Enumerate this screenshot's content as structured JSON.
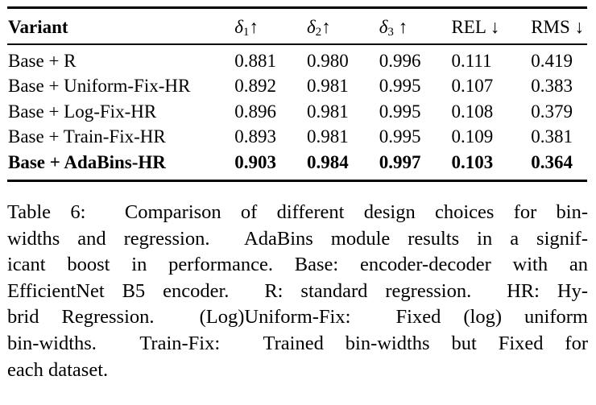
{
  "table": {
    "headers": {
      "variant": "Variant",
      "d1": {
        "sym": "δ",
        "sub": "1",
        "arrow": "↑"
      },
      "d2": {
        "sym": "δ",
        "sub": "2",
        "arrow": "↑"
      },
      "d3": {
        "sym": "δ",
        "sub": "3",
        "arrow": " ↑"
      },
      "rel": "REL ↓",
      "rms": "RMS ↓"
    },
    "rows": [
      {
        "variant": "Base + R",
        "d1": "0.881",
        "d2": "0.980",
        "d3": "0.996",
        "rel": "0.111",
        "rms": "0.419",
        "bold": false
      },
      {
        "variant": "Base + Uniform-Fix-HR",
        "d1": "0.892",
        "d2": "0.981",
        "d3": "0.995",
        "rel": "0.107",
        "rms": "0.383",
        "bold": false
      },
      {
        "variant": "Base + Log-Fix-HR",
        "d1": "0.896",
        "d2": "0.981",
        "d3": "0.995",
        "rel": "0.108",
        "rms": "0.379",
        "bold": false
      },
      {
        "variant": "Base + Train-Fix-HR",
        "d1": "0.893",
        "d2": "0.981",
        "d3": "0.995",
        "rel": "0.109",
        "rms": "0.381",
        "bold": false
      },
      {
        "variant": "Base + AdaBins-HR",
        "d1": "0.903",
        "d2": "0.984",
        "d3": "0.997",
        "rel": "0.103",
        "rms": "0.364",
        "bold": true
      }
    ]
  },
  "caption": "Table 6: Comparison of different design choices for bin-widths and regression. AdaBins module results in a significant boost in performance. Base: encoder-decoder with an EfficientNet B5 encoder. R: standard regression. HR: Hybrid Regression. (Log)Uniform-Fix: Fixed (log) uniform bin-widths. Train-Fix: Trained bin-widths but Fixed for each dataset.",
  "caption_lines": [
    "Table 6:  Comparison of different design choices for bin-",
    "widths and regression.  AdaBins module results in a signif-",
    "icant boost in performance. Base: encoder-decoder with an",
    "EfficientNet B5 encoder.  R: standard regression.  HR: Hy-",
    "brid Regression.  (Log)Uniform-Fix:  Fixed (log) uniform",
    "bin-widths.  Train-Fix:  Trained bin-widths but Fixed for",
    "each dataset."
  ]
}
